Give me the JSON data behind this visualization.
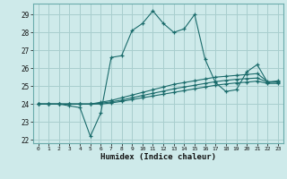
{
  "title": "",
  "xlabel": "Humidex (Indice chaleur)",
  "ylabel": "",
  "bg_color": "#ceeaea",
  "grid_color": "#a8cece",
  "line_color": "#1a6b6b",
  "spine_color": "#6aabab",
  "xlim": [
    -0.5,
    23.5
  ],
  "ylim": [
    21.8,
    29.6
  ],
  "yticks": [
    22,
    23,
    24,
    25,
    26,
    27,
    28,
    29
  ],
  "xticks": [
    0,
    1,
    2,
    3,
    4,
    5,
    6,
    7,
    8,
    9,
    10,
    11,
    12,
    13,
    14,
    15,
    16,
    17,
    18,
    19,
    20,
    21,
    22,
    23
  ],
  "xtick_labels": [
    "0",
    "1",
    "2",
    "3",
    "4",
    "5",
    "6",
    "7",
    "8",
    "9",
    "10",
    "11",
    "12",
    "13",
    "14",
    "15",
    "16",
    "17",
    "18",
    "19",
    "20",
    "21",
    "22",
    "23"
  ],
  "series": [
    [
      24.0,
      24.0,
      24.0,
      23.9,
      23.8,
      22.2,
      23.5,
      26.6,
      26.7,
      28.1,
      28.5,
      29.2,
      28.5,
      28.0,
      28.2,
      29.0,
      26.5,
      25.2,
      24.7,
      24.8,
      25.8,
      26.2,
      25.2,
      25.3
    ],
    [
      24.0,
      24.0,
      24.0,
      24.0,
      24.0,
      24.0,
      24.1,
      24.2,
      24.35,
      24.5,
      24.65,
      24.8,
      24.95,
      25.1,
      25.2,
      25.3,
      25.4,
      25.5,
      25.55,
      25.6,
      25.65,
      25.7,
      25.25,
      25.25
    ],
    [
      24.0,
      24.0,
      24.0,
      24.0,
      24.0,
      24.0,
      24.05,
      24.12,
      24.22,
      24.35,
      24.48,
      24.6,
      24.72,
      24.85,
      24.95,
      25.05,
      25.15,
      25.25,
      25.32,
      25.38,
      25.42,
      25.45,
      25.22,
      25.22
    ],
    [
      24.0,
      24.0,
      24.0,
      24.0,
      24.0,
      24.0,
      24.0,
      24.06,
      24.15,
      24.25,
      24.35,
      24.45,
      24.55,
      24.65,
      24.75,
      24.85,
      24.95,
      25.05,
      25.12,
      25.18,
      25.22,
      25.28,
      25.15,
      25.15
    ]
  ]
}
